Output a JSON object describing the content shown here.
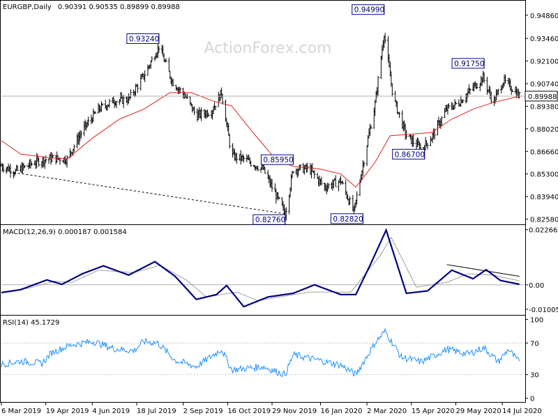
{
  "watermark": "ActionForex.com",
  "chart_data": [
    {
      "type": "ohlc",
      "title": "EURGBP,Daily",
      "ohlc_header": "0.90391 0.90535 0.89899 0.89988",
      "y_ticks": [
        "0.94860",
        "0.93460",
        "0.92100",
        "0.90740",
        "0.89380",
        "0.88020",
        "0.86660",
        "0.85300",
        "0.83940",
        "0.82580"
      ],
      "ylim": [
        0.8235,
        0.9565
      ],
      "current_price": "0.89988",
      "ma_series_name": "",
      "key_points": [
        {
          "date": "2019-03-06",
          "close": 0.858
        },
        {
          "date": "2019-03-20",
          "close": 0.8545
        },
        {
          "date": "2019-04-10",
          "close": 0.8605
        },
        {
          "date": "2019-04-25",
          "close": 0.8625
        },
        {
          "date": "2019-05-10",
          "close": 0.862
        },
        {
          "date": "2019-05-25",
          "close": 0.879
        },
        {
          "date": "2019-06-10",
          "close": 0.892
        },
        {
          "date": "2019-06-25",
          "close": 0.897
        },
        {
          "date": "2019-07-10",
          "close": 0.898
        },
        {
          "date": "2019-07-25",
          "close": 0.912
        },
        {
          "date": "2019-08-09",
          "close": 0.93
        },
        {
          "date": "2019-08-22",
          "close": 0.909
        },
        {
          "date": "2019-09-05",
          "close": 0.899
        },
        {
          "date": "2019-09-15",
          "close": 0.888
        },
        {
          "date": "2019-09-30",
          "close": 0.891
        },
        {
          "date": "2019-10-10",
          "close": 0.902
        },
        {
          "date": "2019-10-20",
          "close": 0.864
        },
        {
          "date": "2019-11-01",
          "close": 0.862
        },
        {
          "date": "2019-11-20",
          "close": 0.856
        },
        {
          "date": "2019-12-12",
          "close": 0.829
        },
        {
          "date": "2019-12-20",
          "close": 0.856
        },
        {
          "date": "2020-01-05",
          "close": 0.856
        },
        {
          "date": "2020-01-20",
          "close": 0.845
        },
        {
          "date": "2020-02-05",
          "close": 0.849
        },
        {
          "date": "2020-02-18",
          "close": 0.83
        },
        {
          "date": "2020-03-01",
          "close": 0.868
        },
        {
          "date": "2020-03-10",
          "close": 0.895
        },
        {
          "date": "2020-03-19",
          "close": 0.938
        },
        {
          "date": "2020-03-28",
          "close": 0.899
        },
        {
          "date": "2020-04-10",
          "close": 0.876
        },
        {
          "date": "2020-04-25",
          "close": 0.868
        },
        {
          "date": "2020-05-05",
          "close": 0.875
        },
        {
          "date": "2020-05-20",
          "close": 0.892
        },
        {
          "date": "2020-06-01",
          "close": 0.896
        },
        {
          "date": "2020-06-15",
          "close": 0.905
        },
        {
          "date": "2020-06-25",
          "close": 0.911
        },
        {
          "date": "2020-07-05",
          "close": 0.896
        },
        {
          "date": "2020-07-15",
          "close": 0.909
        },
        {
          "date": "2020-07-25",
          "close": 0.904
        },
        {
          "date": "2020-07-31",
          "close": 0.8999
        }
      ],
      "ma_points": [
        {
          "date": "2019-03-06",
          "value": 0.873
        },
        {
          "date": "2019-03-25",
          "value": 0.865
        },
        {
          "date": "2019-04-20",
          "value": 0.863
        },
        {
          "date": "2019-05-10",
          "value": 0.862
        },
        {
          "date": "2019-06-05",
          "value": 0.875
        },
        {
          "date": "2019-07-01",
          "value": 0.886
        },
        {
          "date": "2019-07-25",
          "value": 0.892
        },
        {
          "date": "2019-08-20",
          "value": 0.902
        },
        {
          "date": "2019-09-10",
          "value": 0.902
        },
        {
          "date": "2019-10-01",
          "value": 0.897
        },
        {
          "date": "2019-10-20",
          "value": 0.894
        },
        {
          "date": "2019-11-10",
          "value": 0.878
        },
        {
          "date": "2019-12-01",
          "value": 0.863
        },
        {
          "date": "2019-12-20",
          "value": 0.8575
        },
        {
          "date": "2020-01-15",
          "value": 0.856
        },
        {
          "date": "2020-02-05",
          "value": 0.853
        },
        {
          "date": "2020-02-20",
          "value": 0.845
        },
        {
          "date": "2020-03-10",
          "value": 0.86
        },
        {
          "date": "2020-03-25",
          "value": 0.876
        },
        {
          "date": "2020-04-15",
          "value": 0.877
        },
        {
          "date": "2020-05-05",
          "value": 0.878
        },
        {
          "date": "2020-05-25",
          "value": 0.886
        },
        {
          "date": "2020-06-15",
          "value": 0.892
        },
        {
          "date": "2020-07-05",
          "value": 0.896
        },
        {
          "date": "2020-07-31",
          "value": 0.8998
        }
      ],
      "annotations": [
        {
          "label": "0.93240",
          "date": "2019-08-09",
          "value": 0.9324
        },
        {
          "label": "0.94990",
          "date": "2020-03-19",
          "value": 0.9499
        },
        {
          "label": "0.91750",
          "date": "2020-06-26",
          "value": 0.9175
        },
        {
          "label": "0.85950",
          "date": "2019-12-20",
          "value": 0.8595
        },
        {
          "label": "0.86700",
          "date": "2020-04-28",
          "value": 0.867
        },
        {
          "label": "0.82760",
          "date": "2019-12-12",
          "value": 0.8276
        },
        {
          "label": "0.82820",
          "date": "2020-02-27",
          "value": 0.8282
        }
      ],
      "trendline": {
        "from": {
          "date": "2019-03-06",
          "value": 0.855
        },
        "to": {
          "date": "2019-12-12",
          "value": 0.829
        }
      },
      "grid": false
    },
    {
      "type": "line",
      "title": "MACD(12,26,9) 0.000187 0.001584",
      "y_ticks": [
        "0.022662",
        "0.00",
        "-0.010052"
      ],
      "ylim": [
        -0.0118,
        0.024
      ],
      "series": [
        {
          "values_at": [
            {
              "date": "2019-03-06",
              "value": -0.0032
            },
            {
              "date": "2019-03-25",
              "value": -0.002
            },
            {
              "date": "2019-04-20",
              "value": 0.002
            },
            {
              "date": "2019-05-05",
              "value": 0.0002
            },
            {
              "date": "2019-05-25",
              "value": 0.0045
            },
            {
              "date": "2019-06-15",
              "value": 0.0078
            },
            {
              "date": "2019-07-10",
              "value": 0.004
            },
            {
              "date": "2019-08-05",
              "value": 0.0095
            },
            {
              "date": "2019-08-25",
              "value": 0.0035
            },
            {
              "date": "2019-09-15",
              "value": -0.006
            },
            {
              "date": "2019-10-05",
              "value": -0.004
            },
            {
              "date": "2019-10-15",
              "value": -0.0003
            },
            {
              "date": "2019-11-01",
              "value": -0.009
            },
            {
              "date": "2019-11-25",
              "value": -0.005
            },
            {
              "date": "2019-12-20",
              "value": -0.0035
            },
            {
              "date": "2020-01-10",
              "value": 0.0
            },
            {
              "date": "2020-02-05",
              "value": -0.004
            },
            {
              "date": "2020-02-20",
              "value": -0.004
            },
            {
              "date": "2020-03-05",
              "value": 0.008
            },
            {
              "date": "2020-03-21",
              "value": 0.0225
            },
            {
              "date": "2020-04-10",
              "value": -0.0035
            },
            {
              "date": "2020-05-01",
              "value": -0.0025
            },
            {
              "date": "2020-05-25",
              "value": 0.006
            },
            {
              "date": "2020-06-15",
              "value": 0.0025
            },
            {
              "date": "2020-06-28",
              "value": 0.0062
            },
            {
              "date": "2020-07-12",
              "value": 0.0018
            },
            {
              "date": "2020-07-31",
              "value": 0.0002
            }
          ]
        },
        {
          "values_at": [
            {
              "date": "2019-03-06",
              "value": -0.003
            },
            {
              "date": "2019-04-01",
              "value": -0.0015
            },
            {
              "date": "2019-04-28",
              "value": 0.0015
            },
            {
              "date": "2019-05-15",
              "value": 0.001
            },
            {
              "date": "2019-06-10",
              "value": 0.006
            },
            {
              "date": "2019-07-15",
              "value": 0.005
            },
            {
              "date": "2019-08-10",
              "value": 0.008
            },
            {
              "date": "2019-09-05",
              "value": 0.002
            },
            {
              "date": "2019-09-25",
              "value": -0.005
            },
            {
              "date": "2019-10-25",
              "value": -0.003
            },
            {
              "date": "2019-11-15",
              "value": -0.0065
            },
            {
              "date": "2020-01-05",
              "value": -0.003
            },
            {
              "date": "2020-02-15",
              "value": -0.003
            },
            {
              "date": "2020-03-15",
              "value": 0.012
            },
            {
              "date": "2020-03-26",
              "value": 0.0195
            },
            {
              "date": "2020-04-20",
              "value": -0.001
            },
            {
              "date": "2020-05-20",
              "value": 0.001
            },
            {
              "date": "2020-06-10",
              "value": 0.0045
            },
            {
              "date": "2020-07-05",
              "value": 0.004
            },
            {
              "date": "2020-07-31",
              "value": 0.0016
            }
          ]
        }
      ],
      "trendline": {
        "from": {
          "date": "2020-05-20",
          "value": 0.0083
        },
        "to": {
          "date": "2020-07-31",
          "value": 0.0035
        }
      },
      "grid": false
    },
    {
      "type": "line",
      "title": "RSI(14) 45.1729",
      "y_ticks": [
        "100",
        "70",
        "30",
        "0"
      ],
      "ylim": [
        -3,
        103
      ],
      "gridlines": [
        70,
        30
      ],
      "series": [
        {
          "values_at": [
            {
              "date": "2019-03-06",
              "value": 43
            },
            {
              "date": "2019-03-25",
              "value": 47
            },
            {
              "date": "2019-04-15",
              "value": 44
            },
            {
              "date": "2019-04-25",
              "value": 58
            },
            {
              "date": "2019-05-15",
              "value": 68
            },
            {
              "date": "2019-06-05",
              "value": 72
            },
            {
              "date": "2019-06-25",
              "value": 63
            },
            {
              "date": "2019-07-15",
              "value": 60
            },
            {
              "date": "2019-07-25",
              "value": 72
            },
            {
              "date": "2019-08-08",
              "value": 70
            },
            {
              "date": "2019-08-25",
              "value": 48
            },
            {
              "date": "2019-09-15",
              "value": 40
            },
            {
              "date": "2019-10-10",
              "value": 62
            },
            {
              "date": "2019-10-20",
              "value": 36
            },
            {
              "date": "2019-11-20",
              "value": 40
            },
            {
              "date": "2019-12-12",
              "value": 30
            },
            {
              "date": "2019-12-20",
              "value": 55
            },
            {
              "date": "2020-01-15",
              "value": 48
            },
            {
              "date": "2020-02-05",
              "value": 42
            },
            {
              "date": "2020-02-20",
              "value": 30
            },
            {
              "date": "2020-03-10",
              "value": 70
            },
            {
              "date": "2020-03-20",
              "value": 85
            },
            {
              "date": "2020-04-05",
              "value": 52
            },
            {
              "date": "2020-04-25",
              "value": 46
            },
            {
              "date": "2020-05-20",
              "value": 62
            },
            {
              "date": "2020-06-10",
              "value": 56
            },
            {
              "date": "2020-06-26",
              "value": 64
            },
            {
              "date": "2020-07-10",
              "value": 46
            },
            {
              "date": "2020-07-20",
              "value": 62
            },
            {
              "date": "2020-07-31",
              "value": 45
            }
          ]
        }
      ],
      "grid": true
    }
  ],
  "x_axis": {
    "labels": [
      {
        "label": "6 Mar 2019",
        "date": "2019-03-06"
      },
      {
        "label": "19 Apr 2019",
        "date": "2019-04-19"
      },
      {
        "label": "4 Jun 2019",
        "date": "2019-06-04"
      },
      {
        "label": "18 Jul 2019",
        "date": "2019-07-18"
      },
      {
        "label": "2 Sep 2019",
        "date": "2019-09-02"
      },
      {
        "label": "16 Oct 2019",
        "date": "2019-10-16"
      },
      {
        "label": "29 Nov 2019",
        "date": "2019-11-29"
      },
      {
        "label": "16 Jan 2020",
        "date": "2020-01-16"
      },
      {
        "label": "2 Mar 2020",
        "date": "2020-03-02"
      },
      {
        "label": "15 Apr 2020",
        "date": "2020-04-15"
      },
      {
        "label": "29 May 2020",
        "date": "2020-05-29"
      },
      {
        "label": "14 Jul 2020",
        "date": "2020-07-14"
      }
    ],
    "range": [
      "2019-03-06",
      "2020-08-05"
    ]
  },
  "colors": {
    "ma": "#e02020",
    "macd": "#000080",
    "signal": "#a0a0a0",
    "rsi": "#1e90ff",
    "bars": "#000000",
    "annotation": "#000080"
  }
}
